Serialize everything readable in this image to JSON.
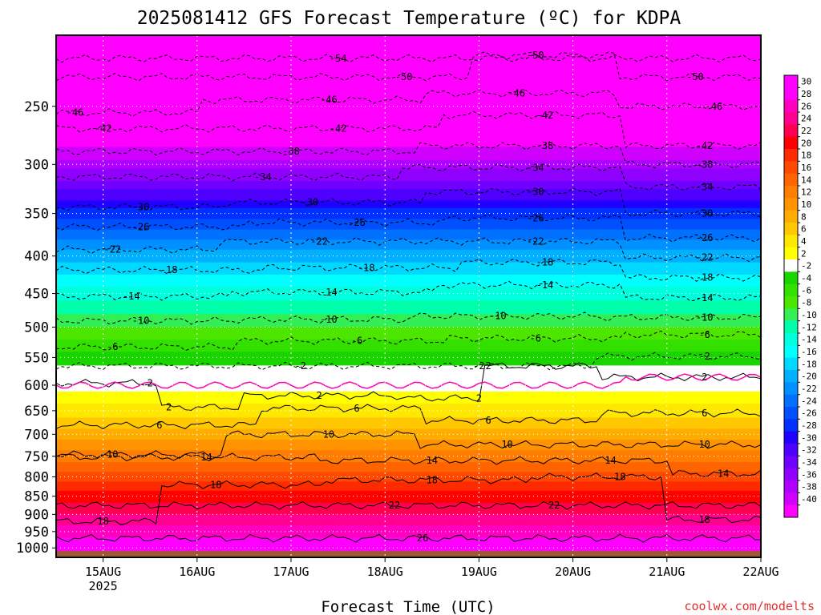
{
  "chart_data": {
    "type": "heatmap",
    "title": "2025081412 GFS Forecast Temperature (ºC) for KDPA",
    "xlabel": "Forecast Time (UTC)",
    "ylabel": "",
    "credit": "coolwx.com/modelts",
    "x_ticks": [
      "15AUG",
      "16AUG",
      "17AUG",
      "18AUG",
      "19AUG",
      "20AUG",
      "21AUG",
      "22AUG"
    ],
    "x_tick_year": "2025",
    "y_ticks": [
      250,
      300,
      350,
      400,
      450,
      500,
      550,
      600,
      650,
      700,
      750,
      800,
      850,
      900,
      950,
      1000
    ],
    "y_scale": "log-pressure (inverted)",
    "y_range_hpa": [
      200,
      1030
    ],
    "x_range_days": [
      "14AUG 12Z",
      "22AUG 00Z"
    ],
    "grid": "dotted white",
    "colorbar_labels": [
      "30",
      "28",
      "26",
      "24",
      "22",
      "20",
      "18",
      "16",
      "14",
      "12",
      "10",
      "8",
      "6",
      "4",
      "2",
      "-2",
      "-4",
      "-6",
      "-8",
      "-10",
      "-12",
      "-14",
      "-16",
      "-18",
      "-20",
      "-22",
      "-24",
      "-26",
      "-28",
      "-30",
      "-32",
      "-34",
      "-36",
      "-38",
      "-40"
    ],
    "colorbar_colors": [
      "#ff00ff",
      "#ff00ff",
      "#ff00c0",
      "#ff0090",
      "#ff0050",
      "#ff0000",
      "#ff2a00",
      "#ff4800",
      "#ff6400",
      "#ff7d00",
      "#ff9400",
      "#ffad00",
      "#ffc800",
      "#ffe800",
      "#ffff00",
      "#ffffff",
      "#1ad400",
      "#33e000",
      "#4de600",
      "#33ee55",
      "#00ffaa",
      "#00ffdd",
      "#00ffff",
      "#00d8ff",
      "#00b0ff",
      "#0090ff",
      "#0070ff",
      "#0050ff",
      "#0030ff",
      "#2000ff",
      "#5000ff",
      "#7000ff",
      "#9000ff",
      "#b000ff",
      "#d000ff",
      "#ff00ff"
    ],
    "temperature_profile": [
      {
        "pressure": 200,
        "temp": -58
      },
      {
        "pressure": 250,
        "temp": -47
      },
      {
        "pressure": 300,
        "temp": -37
      },
      {
        "pressure": 350,
        "temp": -27
      },
      {
        "pressure": 400,
        "temp": -19
      },
      {
        "pressure": 450,
        "temp": -13
      },
      {
        "pressure": 500,
        "temp": -8
      },
      {
        "pressure": 550,
        "temp": -3
      },
      {
        "pressure": 600,
        "temp": 1
      },
      {
        "pressure": 650,
        "temp": 5
      },
      {
        "pressure": 700,
        "temp": 9
      },
      {
        "pressure": 750,
        "temp": 13
      },
      {
        "pressure": 800,
        "temp": 17
      },
      {
        "pressure": 850,
        "temp": 21
      },
      {
        "pressure": 900,
        "temp": 24
      },
      {
        "pressure": 950,
        "temp": 27
      },
      {
        "pressure": 1000,
        "temp": 30
      }
    ],
    "contour_labels": [
      {
        "value": "-54",
        "x_day": 3.0,
        "pressure": 215
      },
      {
        "value": "-50",
        "x_day": 3.7,
        "pressure": 228
      },
      {
        "value": "-50",
        "x_day": 5.1,
        "pressure": 213
      },
      {
        "value": "-50",
        "x_day": 6.8,
        "pressure": 228
      },
      {
        "value": "-46",
        "x_day": 0.2,
        "pressure": 255
      },
      {
        "value": "-46",
        "x_day": 2.9,
        "pressure": 245
      },
      {
        "value": "-46",
        "x_day": 4.9,
        "pressure": 240
      },
      {
        "value": "-46",
        "x_day": 7.0,
        "pressure": 250
      },
      {
        "value": "-42",
        "x_day": 0.5,
        "pressure": 268
      },
      {
        "value": "-42",
        "x_day": 3.0,
        "pressure": 268
      },
      {
        "value": "-42",
        "x_day": 5.2,
        "pressure": 257
      },
      {
        "value": "-42",
        "x_day": 6.9,
        "pressure": 283
      },
      {
        "value": "-38",
        "x_day": 2.5,
        "pressure": 288
      },
      {
        "value": "-38",
        "x_day": 5.2,
        "pressure": 283
      },
      {
        "value": "-38",
        "x_day": 6.9,
        "pressure": 300
      },
      {
        "value": "-34",
        "x_day": 2.2,
        "pressure": 312
      },
      {
        "value": "-34",
        "x_day": 5.1,
        "pressure": 303
      },
      {
        "value": "-34",
        "x_day": 6.9,
        "pressure": 322
      },
      {
        "value": "-30",
        "x_day": 0.9,
        "pressure": 343
      },
      {
        "value": "-30",
        "x_day": 2.7,
        "pressure": 338
      },
      {
        "value": "-30",
        "x_day": 5.1,
        "pressure": 327
      },
      {
        "value": "-30",
        "x_day": 6.9,
        "pressure": 350
      },
      {
        "value": "-26",
        "x_day": 0.9,
        "pressure": 365
      },
      {
        "value": "-26",
        "x_day": 3.2,
        "pressure": 360
      },
      {
        "value": "-26",
        "x_day": 5.1,
        "pressure": 355
      },
      {
        "value": "-26",
        "x_day": 6.9,
        "pressure": 378
      },
      {
        "value": "-22",
        "x_day": 0.6,
        "pressure": 392
      },
      {
        "value": "-22",
        "x_day": 2.8,
        "pressure": 382
      },
      {
        "value": "-22",
        "x_day": 5.1,
        "pressure": 382
      },
      {
        "value": "-22",
        "x_day": 6.9,
        "pressure": 402
      },
      {
        "value": "-18",
        "x_day": 1.2,
        "pressure": 418
      },
      {
        "value": "-18",
        "x_day": 3.3,
        "pressure": 415
      },
      {
        "value": "-18",
        "x_day": 5.2,
        "pressure": 408
      },
      {
        "value": "-18",
        "x_day": 6.9,
        "pressure": 428
      },
      {
        "value": "-14",
        "x_day": 0.8,
        "pressure": 454
      },
      {
        "value": "-14",
        "x_day": 2.9,
        "pressure": 448
      },
      {
        "value": "-14",
        "x_day": 5.2,
        "pressure": 438
      },
      {
        "value": "-14",
        "x_day": 6.9,
        "pressure": 456
      },
      {
        "value": "-10",
        "x_day": 0.9,
        "pressure": 490
      },
      {
        "value": "-10",
        "x_day": 2.9,
        "pressure": 488
      },
      {
        "value": "-10",
        "x_day": 4.7,
        "pressure": 483
      },
      {
        "value": "-10",
        "x_day": 6.9,
        "pressure": 485
      },
      {
        "value": "-6",
        "x_day": 0.6,
        "pressure": 532
      },
      {
        "value": "-6",
        "x_day": 3.2,
        "pressure": 522
      },
      {
        "value": "-6",
        "x_day": 5.1,
        "pressure": 518
      },
      {
        "value": "-6",
        "x_day": 6.9,
        "pressure": 512
      },
      {
        "value": "-2",
        "x_day": 2.6,
        "pressure": 565
      },
      {
        "value": "-2",
        "x_day": 4.5,
        "pressure": 565
      },
      {
        "value": "-2",
        "x_day": 6.9,
        "pressure": 548
      },
      {
        "value": "2",
        "x_day": 1.0,
        "pressure": 596
      },
      {
        "value": "2",
        "x_day": 1.2,
        "pressure": 643
      },
      {
        "value": "2",
        "x_day": 2.8,
        "pressure": 620
      },
      {
        "value": "2",
        "x_day": 4.5,
        "pressure": 625
      },
      {
        "value": "2",
        "x_day": 4.6,
        "pressure": 565
      },
      {
        "value": "2",
        "x_day": 6.9,
        "pressure": 585
      },
      {
        "value": "6",
        "x_day": 1.1,
        "pressure": 680
      },
      {
        "value": "6",
        "x_day": 3.2,
        "pressure": 645
      },
      {
        "value": "6",
        "x_day": 4.6,
        "pressure": 670
      },
      {
        "value": "6",
        "x_day": 6.9,
        "pressure": 655
      },
      {
        "value": "10",
        "x_day": 0.6,
        "pressure": 746
      },
      {
        "value": "10",
        "x_day": 2.9,
        "pressure": 700
      },
      {
        "value": "10",
        "x_day": 4.8,
        "pressure": 723
      },
      {
        "value": "10",
        "x_day": 6.9,
        "pressure": 723
      },
      {
        "value": "14",
        "x_day": 1.6,
        "pressure": 752
      },
      {
        "value": "14",
        "x_day": 4.0,
        "pressure": 760
      },
      {
        "value": "14",
        "x_day": 5.9,
        "pressure": 760
      },
      {
        "value": "14",
        "x_day": 7.1,
        "pressure": 792
      },
      {
        "value": "18",
        "x_day": 0.5,
        "pressure": 920
      },
      {
        "value": "18",
        "x_day": 1.7,
        "pressure": 820
      },
      {
        "value": "18",
        "x_day": 4.0,
        "pressure": 808
      },
      {
        "value": "18",
        "x_day": 6.0,
        "pressure": 800
      },
      {
        "value": "18",
        "x_day": 6.9,
        "pressure": 915
      },
      {
        "value": "22",
        "x_day": 3.6,
        "pressure": 875
      },
      {
        "value": "22",
        "x_day": 5.3,
        "pressure": 875
      },
      {
        "value": "26",
        "x_day": 3.9,
        "pressure": 970
      }
    ],
    "freezing_line": "magenta, ~600 hPa"
  }
}
